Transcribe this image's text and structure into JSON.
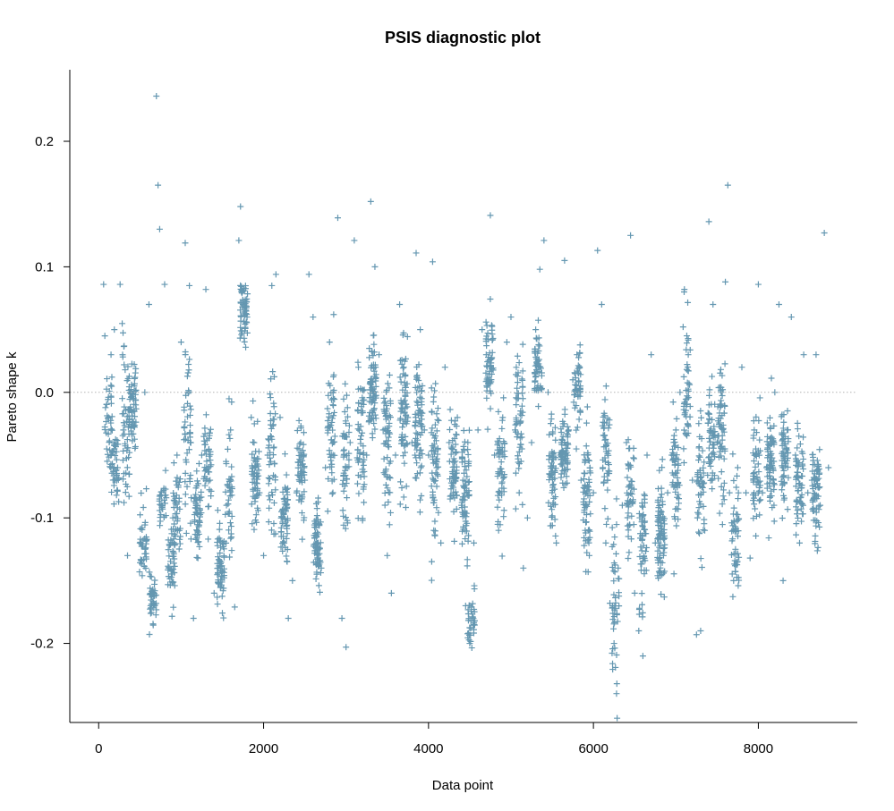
{
  "chart_data": {
    "type": "scatter",
    "title": "PSIS diagnostic plot",
    "xlabel": "Data point",
    "ylabel": "Pareto shape k",
    "xlim": [
      -350,
      9200
    ],
    "ylim": [
      -0.263,
      0.257
    ],
    "x_ticks": [
      0,
      2000,
      4000,
      6000,
      8000
    ],
    "x_tick_labels": [
      "0",
      "2000",
      "4000",
      "6000",
      "8000"
    ],
    "y_ticks": [
      -0.2,
      -0.1,
      0.0,
      0.1,
      0.2
    ],
    "y_tick_labels": [
      "-0.2",
      "-0.1",
      "0.0",
      "0.1",
      "0.2"
    ],
    "reference_line": {
      "y": 0.0,
      "style": "dotted",
      "color": "#b3b3b3"
    },
    "marker": "+",
    "point_color": "#6497b1",
    "grid": false,
    "legend": "none",
    "n_points": 8800,
    "series": [
      {
        "points": [
          [
            60,
            0.086
          ],
          [
            75,
            0.045
          ],
          [
            120,
            -0.02
          ],
          [
            150,
            0.03
          ],
          [
            190,
            0.05
          ],
          [
            230,
            -0.06
          ],
          [
            260,
            0.086
          ],
          [
            300,
            -0.03
          ],
          [
            350,
            -0.13
          ],
          [
            400,
            0.0
          ],
          [
            450,
            -0.01
          ],
          [
            500,
            -0.12
          ],
          [
            560,
            0.0
          ],
          [
            610,
            0.07
          ],
          [
            630,
            -0.17
          ],
          [
            700,
            0.236
          ],
          [
            720,
            0.165
          ],
          [
            740,
            0.13
          ],
          [
            760,
            -0.09
          ],
          [
            800,
            0.086
          ],
          [
            850,
            -0.14
          ],
          [
            900,
            -0.1
          ],
          [
            950,
            -0.05
          ],
          [
            1000,
            0.04
          ],
          [
            1050,
            0.119
          ],
          [
            1100,
            0.085
          ],
          [
            1150,
            -0.18
          ],
          [
            1200,
            -0.09
          ],
          [
            1250,
            -0.05
          ],
          [
            1300,
            0.082
          ],
          [
            1350,
            -0.07
          ],
          [
            1400,
            -0.16
          ],
          [
            1450,
            -0.14
          ],
          [
            1500,
            -0.12
          ],
          [
            1550,
            -0.09
          ],
          [
            1600,
            -0.03
          ],
          [
            1650,
            -0.171
          ],
          [
            1700,
            0.121
          ],
          [
            1720,
            0.148
          ],
          [
            1750,
            0.07
          ],
          [
            1800,
            0.06
          ],
          [
            1850,
            -0.02
          ],
          [
            1900,
            -0.06
          ],
          [
            1950,
            -0.08
          ],
          [
            2000,
            -0.13
          ],
          [
            2050,
            -0.05
          ],
          [
            2100,
            0.085
          ],
          [
            2150,
            0.094
          ],
          [
            2200,
            -0.02
          ],
          [
            2250,
            -0.12
          ],
          [
            2300,
            -0.18
          ],
          [
            2350,
            -0.15
          ],
          [
            2400,
            -0.08
          ],
          [
            2450,
            -0.04
          ],
          [
            2500,
            -0.07
          ],
          [
            2550,
            0.094
          ],
          [
            2600,
            0.06
          ],
          [
            2650,
            -0.12
          ],
          [
            2700,
            -0.14
          ],
          [
            2750,
            -0.06
          ],
          [
            2800,
            0.04
          ],
          [
            2850,
            0.062
          ],
          [
            2900,
            0.139
          ],
          [
            2950,
            -0.18
          ],
          [
            3000,
            -0.203
          ],
          [
            3050,
            -0.04
          ],
          [
            3100,
            0.121
          ],
          [
            3150,
            0.02
          ],
          [
            3200,
            -0.102
          ],
          [
            3250,
            -0.05
          ],
          [
            3300,
            0.152
          ],
          [
            3350,
            0.1
          ],
          [
            3400,
            0.03
          ],
          [
            3450,
            -0.03
          ],
          [
            3500,
            -0.13
          ],
          [
            3550,
            -0.16
          ],
          [
            3600,
            -0.05
          ],
          [
            3650,
            0.07
          ],
          [
            3700,
            0.02
          ],
          [
            3750,
            -0.02
          ],
          [
            3800,
            -0.04
          ],
          [
            3850,
            0.111
          ],
          [
            3900,
            0.05
          ],
          [
            3950,
            -0.03
          ],
          [
            4000,
            -0.05
          ],
          [
            4050,
            0.104
          ],
          [
            4100,
            -0.06
          ],
          [
            4150,
            -0.12
          ],
          [
            4200,
            0.02
          ],
          [
            4250,
            -0.04
          ],
          [
            4300,
            -0.08
          ],
          [
            4350,
            -0.02
          ],
          [
            4400,
            -0.09
          ],
          [
            4450,
            -0.17
          ],
          [
            4500,
            -0.2
          ],
          [
            4550,
            -0.12
          ],
          [
            4600,
            -0.03
          ],
          [
            4650,
            0.05
          ],
          [
            4700,
            0.03
          ],
          [
            4750,
            0.141
          ],
          [
            4800,
            -0.05
          ],
          [
            4850,
            -0.11
          ],
          [
            4900,
            -0.02
          ],
          [
            4950,
            0.04
          ],
          [
            5000,
            0.06
          ],
          [
            5050,
            -0.03
          ],
          [
            5100,
            -0.08
          ],
          [
            5150,
            -0.14
          ],
          [
            5200,
            -0.1
          ],
          [
            5250,
            -0.04
          ],
          [
            5300,
            0.05
          ],
          [
            5350,
            0.098
          ],
          [
            5400,
            0.121
          ],
          [
            5450,
            0.0
          ],
          [
            5500,
            -0.06
          ],
          [
            5550,
            -0.12
          ],
          [
            5600,
            -0.05
          ],
          [
            5650,
            0.105
          ],
          [
            5700,
            -0.03
          ],
          [
            5750,
            0.01
          ],
          [
            5800,
            0.03
          ],
          [
            5850,
            -0.07
          ],
          [
            5900,
            -0.11
          ],
          [
            5950,
            -0.13
          ],
          [
            6000,
            -0.08
          ],
          [
            6050,
            0.113
          ],
          [
            6100,
            0.07
          ],
          [
            6150,
            -0.12
          ],
          [
            6200,
            -0.168
          ],
          [
            6250,
            -0.2
          ],
          [
            6280,
            -0.24
          ],
          [
            6300,
            -0.14
          ],
          [
            6350,
            -0.09
          ],
          [
            6400,
            -0.04
          ],
          [
            6450,
            0.125
          ],
          [
            6500,
            -0.16
          ],
          [
            6550,
            -0.19
          ],
          [
            6600,
            -0.21
          ],
          [
            6650,
            -0.05
          ],
          [
            6700,
            0.03
          ],
          [
            6750,
            -0.12
          ],
          [
            6800,
            -0.1
          ],
          [
            6850,
            -0.13
          ],
          [
            6900,
            -0.08
          ],
          [
            6950,
            -0.05
          ],
          [
            7000,
            -0.03
          ],
          [
            7050,
            0.0
          ],
          [
            7100,
            0.08
          ],
          [
            7150,
            0.03
          ],
          [
            7200,
            -0.07
          ],
          [
            7250,
            -0.193
          ],
          [
            7300,
            -0.19
          ],
          [
            7350,
            -0.11
          ],
          [
            7400,
            0.136
          ],
          [
            7450,
            0.07
          ],
          [
            7500,
            -0.04
          ],
          [
            7550,
            0.0
          ],
          [
            7600,
            0.088
          ],
          [
            7630,
            0.165
          ],
          [
            7650,
            -0.08
          ],
          [
            7700,
            -0.15
          ],
          [
            7750,
            -0.06
          ],
          [
            7800,
            0.02
          ],
          [
            7850,
            -0.08
          ],
          [
            7900,
            -0.132
          ],
          [
            7950,
            -0.03
          ],
          [
            8000,
            0.086
          ],
          [
            8050,
            -0.08
          ],
          [
            8100,
            -0.06
          ],
          [
            8150,
            -0.05
          ],
          [
            8200,
            0.0
          ],
          [
            8250,
            0.07
          ],
          [
            8300,
            -0.15
          ],
          [
            8350,
            -0.03
          ],
          [
            8400,
            0.06
          ],
          [
            8450,
            -0.05
          ],
          [
            8500,
            -0.12
          ],
          [
            8550,
            0.03
          ],
          [
            8600,
            -0.08
          ],
          [
            8650,
            -0.07
          ],
          [
            8700,
            0.03
          ],
          [
            8750,
            -0.09
          ],
          [
            8800,
            0.127
          ],
          [
            8850,
            -0.06
          ]
        ],
        "clusters": [
          {
            "x": 120,
            "mean": -0.02,
            "sd": 0.025,
            "n": 40
          },
          {
            "x": 200,
            "mean": -0.06,
            "sd": 0.012,
            "n": 40
          },
          {
            "x": 330,
            "mean": -0.03,
            "sd": 0.04,
            "n": 50
          },
          {
            "x": 410,
            "mean": -0.01,
            "sd": 0.015,
            "n": 60
          },
          {
            "x": 540,
            "mean": -0.12,
            "sd": 0.015,
            "n": 40
          },
          {
            "x": 660,
            "mean": -0.165,
            "sd": 0.008,
            "n": 40
          },
          {
            "x": 780,
            "mean": -0.09,
            "sd": 0.01,
            "n": 30
          },
          {
            "x": 880,
            "mean": -0.135,
            "sd": 0.015,
            "n": 45
          },
          {
            "x": 950,
            "mean": -0.1,
            "sd": 0.02,
            "n": 40
          },
          {
            "x": 1080,
            "mean": -0.04,
            "sd": 0.03,
            "n": 50
          },
          {
            "x": 1200,
            "mean": -0.095,
            "sd": 0.02,
            "n": 55
          },
          {
            "x": 1320,
            "mean": -0.06,
            "sd": 0.02,
            "n": 45
          },
          {
            "x": 1480,
            "mean": -0.14,
            "sd": 0.015,
            "n": 60
          },
          {
            "x": 1580,
            "mean": -0.08,
            "sd": 0.03,
            "n": 40
          },
          {
            "x": 1760,
            "mean": 0.065,
            "sd": 0.012,
            "n": 60
          },
          {
            "x": 1900,
            "mean": -0.07,
            "sd": 0.02,
            "n": 60
          },
          {
            "x": 2100,
            "mean": -0.05,
            "sd": 0.03,
            "n": 50
          },
          {
            "x": 2250,
            "mean": -0.1,
            "sd": 0.02,
            "n": 60
          },
          {
            "x": 2450,
            "mean": -0.06,
            "sd": 0.02,
            "n": 55
          },
          {
            "x": 2650,
            "mean": -0.12,
            "sd": 0.015,
            "n": 70
          },
          {
            "x": 2820,
            "mean": -0.04,
            "sd": 0.03,
            "n": 55
          },
          {
            "x": 3000,
            "mean": -0.06,
            "sd": 0.03,
            "n": 50
          },
          {
            "x": 3180,
            "mean": -0.04,
            "sd": 0.03,
            "n": 55
          },
          {
            "x": 3320,
            "mean": 0.0,
            "sd": 0.02,
            "n": 70
          },
          {
            "x": 3500,
            "mean": -0.04,
            "sd": 0.025,
            "n": 60
          },
          {
            "x": 3700,
            "mean": -0.02,
            "sd": 0.03,
            "n": 70
          },
          {
            "x": 3880,
            "mean": -0.03,
            "sd": 0.025,
            "n": 75
          },
          {
            "x": 4080,
            "mean": -0.05,
            "sd": 0.03,
            "n": 65
          },
          {
            "x": 4300,
            "mean": -0.06,
            "sd": 0.02,
            "n": 60
          },
          {
            "x": 4450,
            "mean": -0.08,
            "sd": 0.025,
            "n": 70
          },
          {
            "x": 4520,
            "mean": -0.18,
            "sd": 0.01,
            "n": 35
          },
          {
            "x": 4740,
            "mean": 0.02,
            "sd": 0.02,
            "n": 60
          },
          {
            "x": 4880,
            "mean": -0.07,
            "sd": 0.03,
            "n": 55
          },
          {
            "x": 5100,
            "mean": -0.02,
            "sd": 0.03,
            "n": 55
          },
          {
            "x": 5330,
            "mean": 0.02,
            "sd": 0.015,
            "n": 50
          },
          {
            "x": 5500,
            "mean": -0.07,
            "sd": 0.025,
            "n": 60
          },
          {
            "x": 5650,
            "mean": -0.05,
            "sd": 0.015,
            "n": 70
          },
          {
            "x": 5800,
            "mean": 0.0,
            "sd": 0.015,
            "n": 50
          },
          {
            "x": 5920,
            "mean": -0.09,
            "sd": 0.025,
            "n": 65
          },
          {
            "x": 6150,
            "mean": -0.05,
            "sd": 0.03,
            "n": 50
          },
          {
            "x": 6270,
            "mean": -0.16,
            "sd": 0.03,
            "n": 45
          },
          {
            "x": 6450,
            "mean": -0.08,
            "sd": 0.02,
            "n": 50
          },
          {
            "x": 6600,
            "mean": -0.12,
            "sd": 0.03,
            "n": 55
          },
          {
            "x": 6820,
            "mean": -0.11,
            "sd": 0.02,
            "n": 80
          },
          {
            "x": 7000,
            "mean": -0.06,
            "sd": 0.025,
            "n": 55
          },
          {
            "x": 7130,
            "mean": 0.0,
            "sd": 0.03,
            "n": 50
          },
          {
            "x": 7300,
            "mean": -0.07,
            "sd": 0.03,
            "n": 50
          },
          {
            "x": 7430,
            "mean": -0.04,
            "sd": 0.02,
            "n": 55
          },
          {
            "x": 7550,
            "mean": -0.03,
            "sd": 0.025,
            "n": 60
          },
          {
            "x": 7720,
            "mean": -0.11,
            "sd": 0.025,
            "n": 50
          },
          {
            "x": 7980,
            "mean": -0.07,
            "sd": 0.025,
            "n": 55
          },
          {
            "x": 8150,
            "mean": -0.06,
            "sd": 0.02,
            "n": 70
          },
          {
            "x": 8320,
            "mean": -0.05,
            "sd": 0.02,
            "n": 60
          },
          {
            "x": 8500,
            "mean": -0.07,
            "sd": 0.02,
            "n": 60
          },
          {
            "x": 8700,
            "mean": -0.08,
            "sd": 0.02,
            "n": 70
          }
        ]
      }
    ]
  }
}
